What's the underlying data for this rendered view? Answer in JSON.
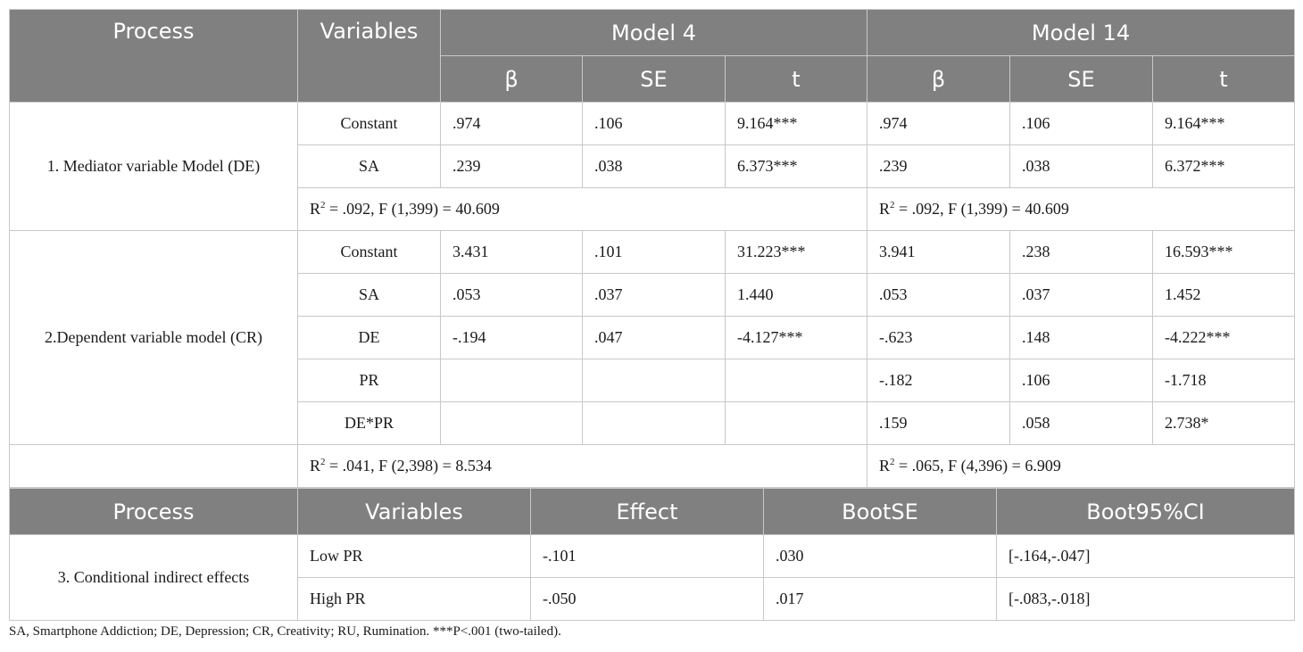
{
  "table1": {
    "header": {
      "process": "Process",
      "variables": "Variables",
      "model4": "Model 4",
      "model14": "Model 14",
      "sub": [
        "β",
        "SE",
        "t",
        "β",
        "SE",
        "t"
      ]
    },
    "section1": {
      "label": "1. Mediator variable Model (DE)",
      "rows": [
        {
          "var": "Constant",
          "m4": [
            ".974",
            ".106",
            "9.164***"
          ],
          "m14": [
            ".974",
            ".106",
            "9.164***"
          ]
        },
        {
          "var": "SA",
          "m4": [
            ".239",
            ".038",
            "6.373***"
          ],
          "m14": [
            ".239",
            ".038",
            "6.372***"
          ]
        }
      ],
      "r2_m4": {
        "pre": "R",
        "sup": "2",
        "post": " = .092, F (1,399) = 40.609"
      },
      "r2_m14": {
        "pre": "R",
        "sup": "2",
        "post": " = .092, F (1,399) = 40.609"
      }
    },
    "section2": {
      "label": "2.Dependent variable model (CR)",
      "rows": [
        {
          "var": "Constant",
          "m4": [
            "3.431",
            ".101",
            "31.223***"
          ],
          "m14": [
            "3.941",
            ".238",
            "16.593***"
          ]
        },
        {
          "var": "SA",
          "m4": [
            ".053",
            ".037",
            "1.440"
          ],
          "m14": [
            ".053",
            ".037",
            "1.452"
          ]
        },
        {
          "var": "DE",
          "m4": [
            "-.194",
            ".047",
            "-4.127***"
          ],
          "m14": [
            "-.623",
            ".148",
            "-4.222***"
          ]
        },
        {
          "var": "PR",
          "m4": [
            "",
            "",
            ""
          ],
          "m14": [
            "-.182",
            ".106",
            "-1.718"
          ]
        },
        {
          "var": "DE*PR",
          "m4": [
            "",
            "",
            ""
          ],
          "m14": [
            ".159",
            ".058",
            "2.738*"
          ]
        }
      ],
      "r2_m4": {
        "pre": "R",
        "sup": "2",
        "post": " = .041, F (2,398) = 8.534"
      },
      "r2_m14": {
        "pre": "R",
        "sup": "2",
        "post": " = .065, F (4,396) = 6.909"
      }
    }
  },
  "table2": {
    "header": [
      "Process",
      "Variables",
      "Effect",
      "BootSE",
      "Boot95%CI"
    ],
    "section3": {
      "label": "3. Conditional indirect effects",
      "rows": [
        {
          "var": "Low PR",
          "effect": "-.101",
          "bootse": ".030",
          "ci": "[-.164,-.047]"
        },
        {
          "var": "High PR",
          "effect": "-.050",
          "bootse": ".017",
          "ci": "[-.083,-.018]"
        }
      ]
    }
  },
  "footnote": "SA, Smartphone Addiction; DE, Depression; CR, Creativity; RU, Rumination.  ***P<.001 (two-tailed)."
}
